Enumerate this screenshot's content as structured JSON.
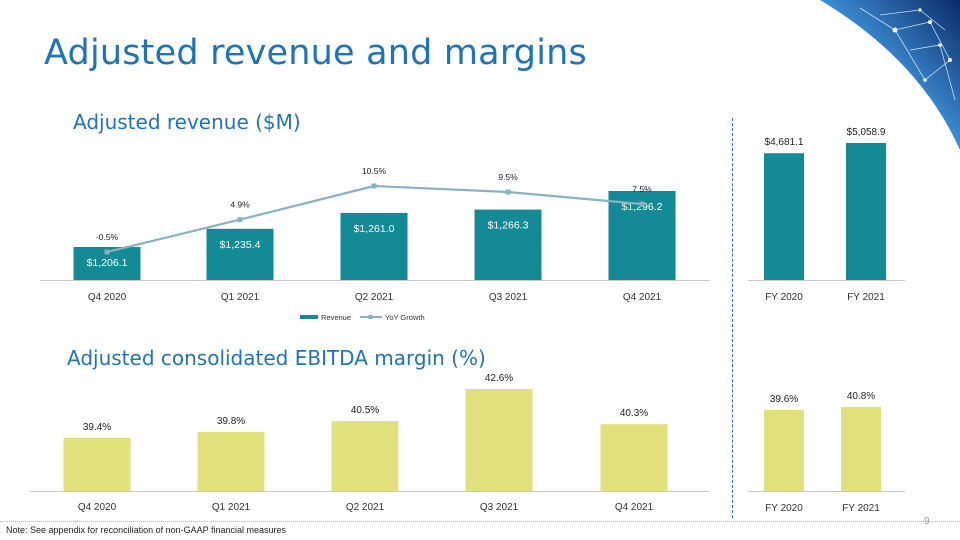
{
  "page": {
    "title": "Adjusted revenue and margins",
    "note": "Note: See appendix for reconciliation of non-GAAP financial measures",
    "page_number": "9"
  },
  "colors": {
    "title": "#1f73b7",
    "revenue_bar": "#148a96",
    "growth_line": "#86b2c2",
    "ebitda_bar": "#e0e17d",
    "axis": "#c8c8c8"
  },
  "chart_data": [
    {
      "id": "revenue",
      "type": "bar",
      "title": "Adjusted revenue ($M)",
      "categories": [
        "Q4 2020",
        "Q1 2021",
        "Q2 2021",
        "Q3 2021",
        "Q4 2021"
      ],
      "series": [
        {
          "name": "Revenue",
          "type": "bar",
          "values": [
            1206.1,
            1235.4,
            1261.0,
            1266.3,
            1296.2
          ],
          "labels": [
            "$1,206.1",
            "$1,235.4",
            "$1,261.0",
            "$1,266.3",
            "$1,296.2"
          ]
        },
        {
          "name": "YoY Growth",
          "type": "line",
          "values": [
            -0.5,
            4.9,
            10.5,
            9.5,
            7.5
          ],
          "labels": [
            "-0.5%",
            "4.9%",
            "10.5%",
            "9.5%",
            "7.5%"
          ]
        }
      ],
      "legend": [
        "Revenue",
        "YoY Growth"
      ],
      "legend_position": "bottom"
    },
    {
      "id": "revenue-fy",
      "type": "bar",
      "categories": [
        "FY 2020",
        "FY 2021"
      ],
      "values": [
        4681.1,
        5058.9
      ],
      "labels": [
        "$4,681.1",
        "$5,058.9"
      ]
    },
    {
      "id": "ebitda",
      "type": "bar",
      "title": "Adjusted consolidated EBITDA margin (%)",
      "categories": [
        "Q4 2020",
        "Q1 2021",
        "Q2 2021",
        "Q3 2021",
        "Q4 2021"
      ],
      "values": [
        39.4,
        39.8,
        40.5,
        42.6,
        40.3
      ],
      "labels": [
        "39.4%",
        "39.8%",
        "40.5%",
        "42.6%",
        "40.3%"
      ]
    },
    {
      "id": "ebitda-fy",
      "type": "bar",
      "categories": [
        "FY 2020",
        "FY 2021"
      ],
      "values": [
        39.6,
        40.8
      ],
      "labels": [
        "39.6%",
        "40.8%"
      ]
    }
  ]
}
